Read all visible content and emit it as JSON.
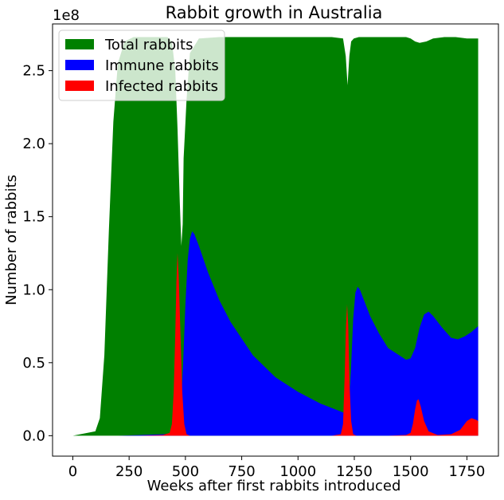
{
  "chart_data": {
    "type": "area",
    "title": "Rabbit growth in Australia",
    "xlabel": "Weeks after first rabbits introduced",
    "ylabel": "Number of rabbits",
    "offset_text": "1e8",
    "xlim": [
      -90,
      1890
    ],
    "ylim": [
      -0.14,
      2.82
    ],
    "xticks": [
      0,
      250,
      500,
      750,
      1000,
      1250,
      1500,
      1750
    ],
    "xtick_labels": [
      "0",
      "250",
      "500",
      "750",
      "1000",
      "1250",
      "1500",
      "1750"
    ],
    "yticks": [
      0.0,
      0.5,
      1.0,
      1.5,
      2.0,
      2.5
    ],
    "ytick_labels": [
      "0.0",
      "0.5",
      "1.0",
      "1.5",
      "2.0",
      "2.5"
    ],
    "grid": false,
    "legend_position": "top-left",
    "series": [
      {
        "name": "Total rabbits",
        "color": "#008000",
        "x": [
          0,
          100,
          120,
          140,
          160,
          180,
          200,
          230,
          270,
          320,
          380,
          420,
          440,
          455,
          465,
          475,
          482,
          488,
          492,
          497,
          505,
          520,
          560,
          650,
          800,
          1000,
          1150,
          1200,
          1212,
          1220,
          1228,
          1236,
          1248,
          1270,
          1320,
          1400,
          1480,
          1500,
          1520,
          1540,
          1570,
          1600,
          1650,
          1700,
          1750,
          1800
        ],
        "y": [
          0.0,
          0.03,
          0.12,
          0.55,
          1.4,
          2.15,
          2.55,
          2.7,
          2.73,
          2.73,
          2.73,
          2.73,
          2.7,
          2.5,
          2.1,
          1.6,
          1.3,
          1.45,
          1.9,
          2.05,
          2.3,
          2.62,
          2.72,
          2.73,
          2.73,
          2.73,
          2.73,
          2.72,
          2.6,
          2.4,
          2.6,
          2.7,
          2.72,
          2.73,
          2.73,
          2.73,
          2.73,
          2.72,
          2.7,
          2.69,
          2.7,
          2.72,
          2.73,
          2.73,
          2.72,
          2.72
        ]
      },
      {
        "name": "Immune rabbits",
        "color": "#0000ff",
        "x": [
          0,
          200,
          300,
          400,
          440,
          460,
          470,
          480,
          490,
          500,
          510,
          520,
          530,
          540,
          560,
          600,
          650,
          700,
          800,
          900,
          1000,
          1100,
          1150,
          1200,
          1215,
          1225,
          1235,
          1245,
          1255,
          1265,
          1275,
          1290,
          1320,
          1360,
          1400,
          1450,
          1480,
          1500,
          1520,
          1540,
          1560,
          1580,
          1600,
          1640,
          1680,
          1710,
          1740,
          1770,
          1800
        ],
        "y": [
          0.0,
          0.0,
          0.005,
          0.01,
          0.015,
          0.02,
          0.05,
          0.2,
          0.5,
          0.9,
          1.2,
          1.35,
          1.4,
          1.38,
          1.3,
          1.12,
          0.93,
          0.78,
          0.55,
          0.4,
          0.3,
          0.22,
          0.19,
          0.16,
          0.15,
          0.2,
          0.45,
          0.8,
          0.98,
          1.02,
          1.0,
          0.94,
          0.82,
          0.7,
          0.6,
          0.55,
          0.52,
          0.53,
          0.6,
          0.74,
          0.83,
          0.85,
          0.82,
          0.74,
          0.67,
          0.66,
          0.68,
          0.71,
          0.75
        ]
      },
      {
        "name": "Infected rabbits",
        "color": "#ff0000",
        "x": [
          0,
          300,
          400,
          430,
          440,
          448,
          455,
          460,
          465,
          470,
          478,
          486,
          495,
          505,
          520,
          600,
          800,
          1000,
          1150,
          1190,
          1200,
          1207,
          1213,
          1218,
          1223,
          1229,
          1236,
          1245,
          1260,
          1300,
          1400,
          1480,
          1500,
          1510,
          1520,
          1528,
          1535,
          1545,
          1560,
          1580,
          1620,
          1680,
          1720,
          1750,
          1770,
          1790,
          1800
        ],
        "y": [
          0.0,
          0.0,
          0.005,
          0.02,
          0.08,
          0.3,
          0.7,
          1.05,
          1.25,
          1.1,
          0.7,
          0.3,
          0.08,
          0.01,
          0.0,
          0.0,
          0.0,
          0.0,
          0.0,
          0.01,
          0.08,
          0.4,
          0.75,
          0.9,
          0.75,
          0.35,
          0.1,
          0.01,
          0.0,
          0.0,
          0.0,
          0.005,
          0.02,
          0.08,
          0.18,
          0.24,
          0.25,
          0.2,
          0.1,
          0.03,
          0.005,
          0.01,
          0.04,
          0.1,
          0.12,
          0.11,
          0.1
        ]
      }
    ]
  }
}
